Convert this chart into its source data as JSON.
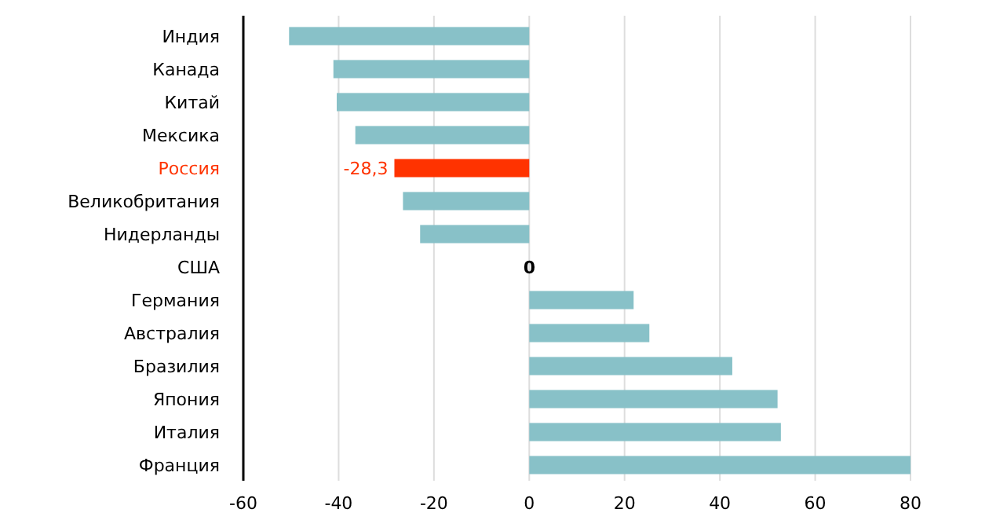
{
  "chart_data": {
    "type": "bar",
    "orientation": "horizontal",
    "categories": [
      "Индия",
      "Канада",
      "Китай",
      "Мексика",
      "Россия",
      "Великобритания",
      "Нидерланды",
      "США",
      "Германия",
      "Австралия",
      "Бразилия",
      "Япония",
      "Италия",
      "Франция"
    ],
    "values": [
      -50.4,
      -41.1,
      -40.4,
      -36.5,
      -28.3,
      -26.5,
      -22.9,
      0,
      21.9,
      25.2,
      42.6,
      52.1,
      52.8,
      80
    ],
    "colors": [
      "#88c1c8",
      "#88c1c8",
      "#88c1c8",
      "#88c1c8",
      "#ff3300",
      "#88c1c8",
      "#88c1c8",
      "#88c1c8",
      "#88c1c8",
      "#88c1c8",
      "#88c1c8",
      "#88c1c8",
      "#88c1c8",
      "#88c1c8"
    ],
    "value_labels": [
      null,
      null,
      null,
      null,
      "-28,3",
      null,
      null,
      "0",
      null,
      null,
      null,
      null,
      null,
      null
    ],
    "xlim": [
      -60,
      80
    ],
    "xticks": [
      -60,
      -40,
      -20,
      0,
      20,
      40,
      60,
      80
    ],
    "grid": "x"
  }
}
